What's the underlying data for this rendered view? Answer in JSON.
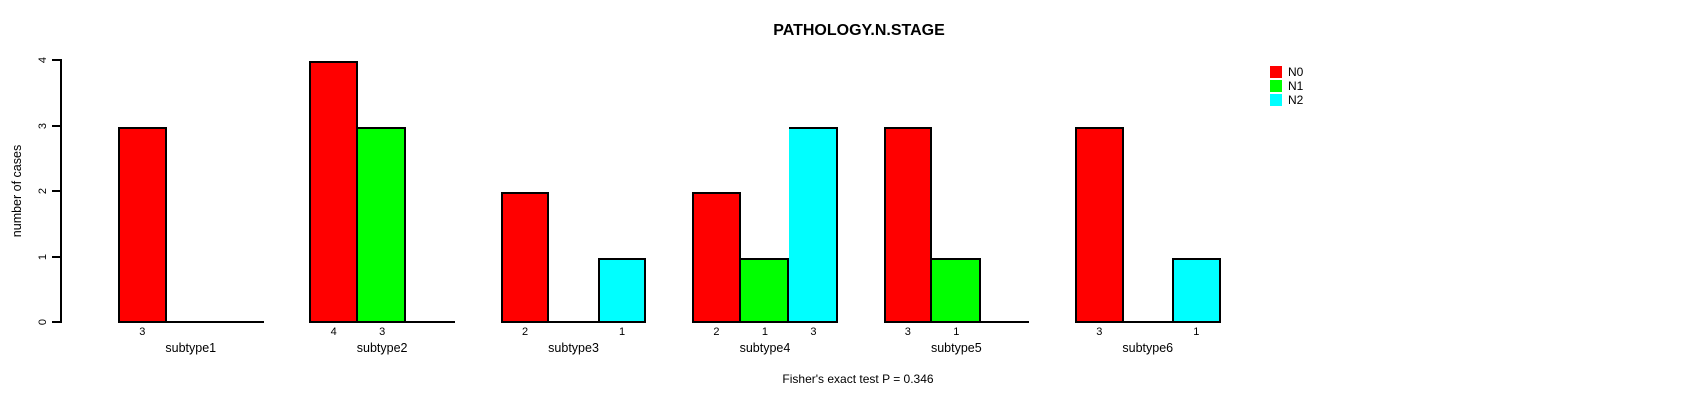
{
  "chart_data": {
    "type": "bar",
    "title": "PATHOLOGY.N.STAGE",
    "ylabel": "number of cases",
    "xlabel": "",
    "annotation": "Fisher's exact test P = 0.346",
    "categories": [
      "subtype1",
      "subtype2",
      "subtype3",
      "subtype4",
      "subtype5",
      "subtype6"
    ],
    "series": [
      {
        "name": "N0",
        "color": "#ff0000",
        "values": [
          3,
          4,
          2,
          2,
          3,
          3
        ]
      },
      {
        "name": "N1",
        "color": "#00ff00",
        "values": [
          0,
          3,
          0,
          1,
          1,
          0
        ]
      },
      {
        "name": "N2",
        "color": "#00ffff",
        "values": [
          0,
          0,
          1,
          3,
          0,
          1
        ]
      }
    ],
    "yticks": [
      "0",
      "1",
      "2",
      "3",
      "4"
    ],
    "ylim": [
      0,
      4
    ],
    "grid": false,
    "legend_position": "top-right",
    "bar_value_labels_shown": true,
    "zero_bars_hidden": true
  },
  "colors": {
    "axis": "#000000",
    "background": "#ffffff",
    "text": "#000000"
  }
}
